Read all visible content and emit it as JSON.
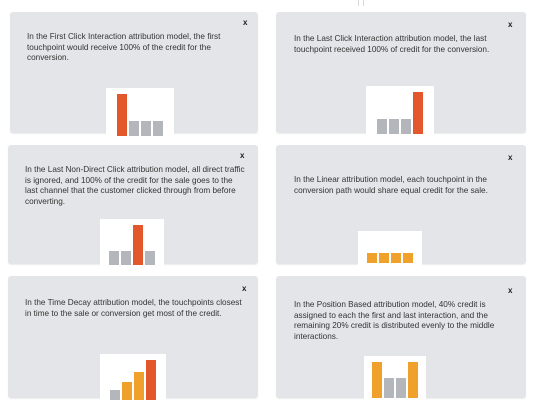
{
  "cards": [
    {
      "text": "In the First Click Interaction attribution model, the first touchpoint would receive 100% of the credit for the conversion.",
      "close": "x"
    },
    {
      "text": "In the Last Click Interaction attribution model, the last touchpoint received 100% of credit for the conversion.",
      "close": "x"
    },
    {
      "text": "In the Last Non-Direct Click attribution model, all direct traffic is ignored, and 100% of the credit for the sale goes to the last channel that the customer clicked through from before converting.",
      "close": "x"
    },
    {
      "text": "In the Linear attribution model, each touchpoint in the conversion path would share equal credit for the sale.",
      "close": "x"
    },
    {
      "text": "In the Time Decay attribution model, the touchpoints closest in time to the sale or conversion get most of the credit.",
      "close": "x"
    },
    {
      "text": "In the Position Based attribution model, 40% credit is assigned to each the first and last interaction, and the remaining 20% credit is distributed evenly to the middle interactions.",
      "close": "x"
    }
  ],
  "colors": {
    "card_bg": "#e3e5e8",
    "highlight_red": "#e2572b",
    "highlight_orange": "#f0a12c",
    "muted_gray": "#b3b6ba"
  },
  "chart_data": [
    {
      "type": "bar",
      "values": [
        1.0,
        0.35,
        0.35,
        0.35
      ],
      "colors": [
        "red",
        "gray",
        "gray",
        "gray"
      ]
    },
    {
      "type": "bar",
      "values": [
        0.35,
        0.35,
        0.35,
        1.0
      ],
      "colors": [
        "gray",
        "gray",
        "gray",
        "red"
      ]
    },
    {
      "type": "bar",
      "values": [
        0.35,
        0.35,
        1.0,
        0.35
      ],
      "colors": [
        "gray",
        "gray",
        "red",
        "gray"
      ]
    },
    {
      "type": "bar",
      "values": [
        0.4,
        0.4,
        0.4,
        0.4
      ],
      "colors": [
        "orange",
        "orange",
        "orange",
        "orange"
      ]
    },
    {
      "type": "bar",
      "values": [
        0.25,
        0.45,
        0.7,
        1.0
      ],
      "colors": [
        "gray",
        "orange",
        "orange",
        "red"
      ]
    },
    {
      "type": "bar",
      "values": [
        1.0,
        0.55,
        0.55,
        1.0
      ],
      "colors": [
        "orange",
        "gray",
        "gray",
        "orange"
      ]
    }
  ]
}
